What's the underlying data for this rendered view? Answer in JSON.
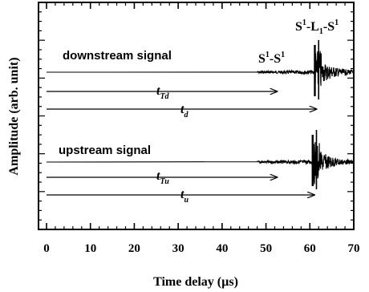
{
  "chart_data": {
    "type": "line",
    "xlabel": "Time delay (µs)",
    "ylabel": "Amplitude (arb. unit)",
    "xlim": [
      0,
      70
    ],
    "x_ticks": [
      0,
      10,
      20,
      30,
      40,
      50,
      60,
      70
    ],
    "x_tick_labels": [
      "0",
      "10",
      "20",
      "30",
      "40",
      "50",
      "60",
      "70"
    ],
    "grid": false,
    "series": [
      {
        "name": "downstream signal",
        "arrival_times_us": {
          "noise_start": 48,
          "S1-S1": 61.5,
          "S1-L1-S1": 62
        }
      },
      {
        "name": "upstream signal",
        "arrival_times_us": {
          "noise_start": 48,
          "S1-S1": 61,
          "S1-L1-S1": 61.5
        }
      }
    ],
    "annotations": {
      "downstream_label": "downstream signal",
      "upstream_label": "upstream signal",
      "s1s1": {
        "base": "S",
        "sup": "1",
        "dash": "-",
        "base2": "S",
        "sup2": "1"
      },
      "s1l1s1": {
        "s": "S",
        "sup1": "1",
        "dash1": "-",
        "l": "L",
        "sub": "1",
        "dash2": "-",
        "s2": "S",
        "sup2": "1"
      },
      "tTd": {
        "base": "t",
        "sub": "Td"
      },
      "td": {
        "base": "t",
        "sub": "d"
      },
      "tTu": {
        "base": "t",
        "sub": "Tu"
      },
      "tu": {
        "base": "t",
        "sub": "u"
      }
    },
    "arrow_ends_us": {
      "tTd": 52.5,
      "td": 61.5,
      "tTu": 52.5,
      "tu": 61
    }
  }
}
